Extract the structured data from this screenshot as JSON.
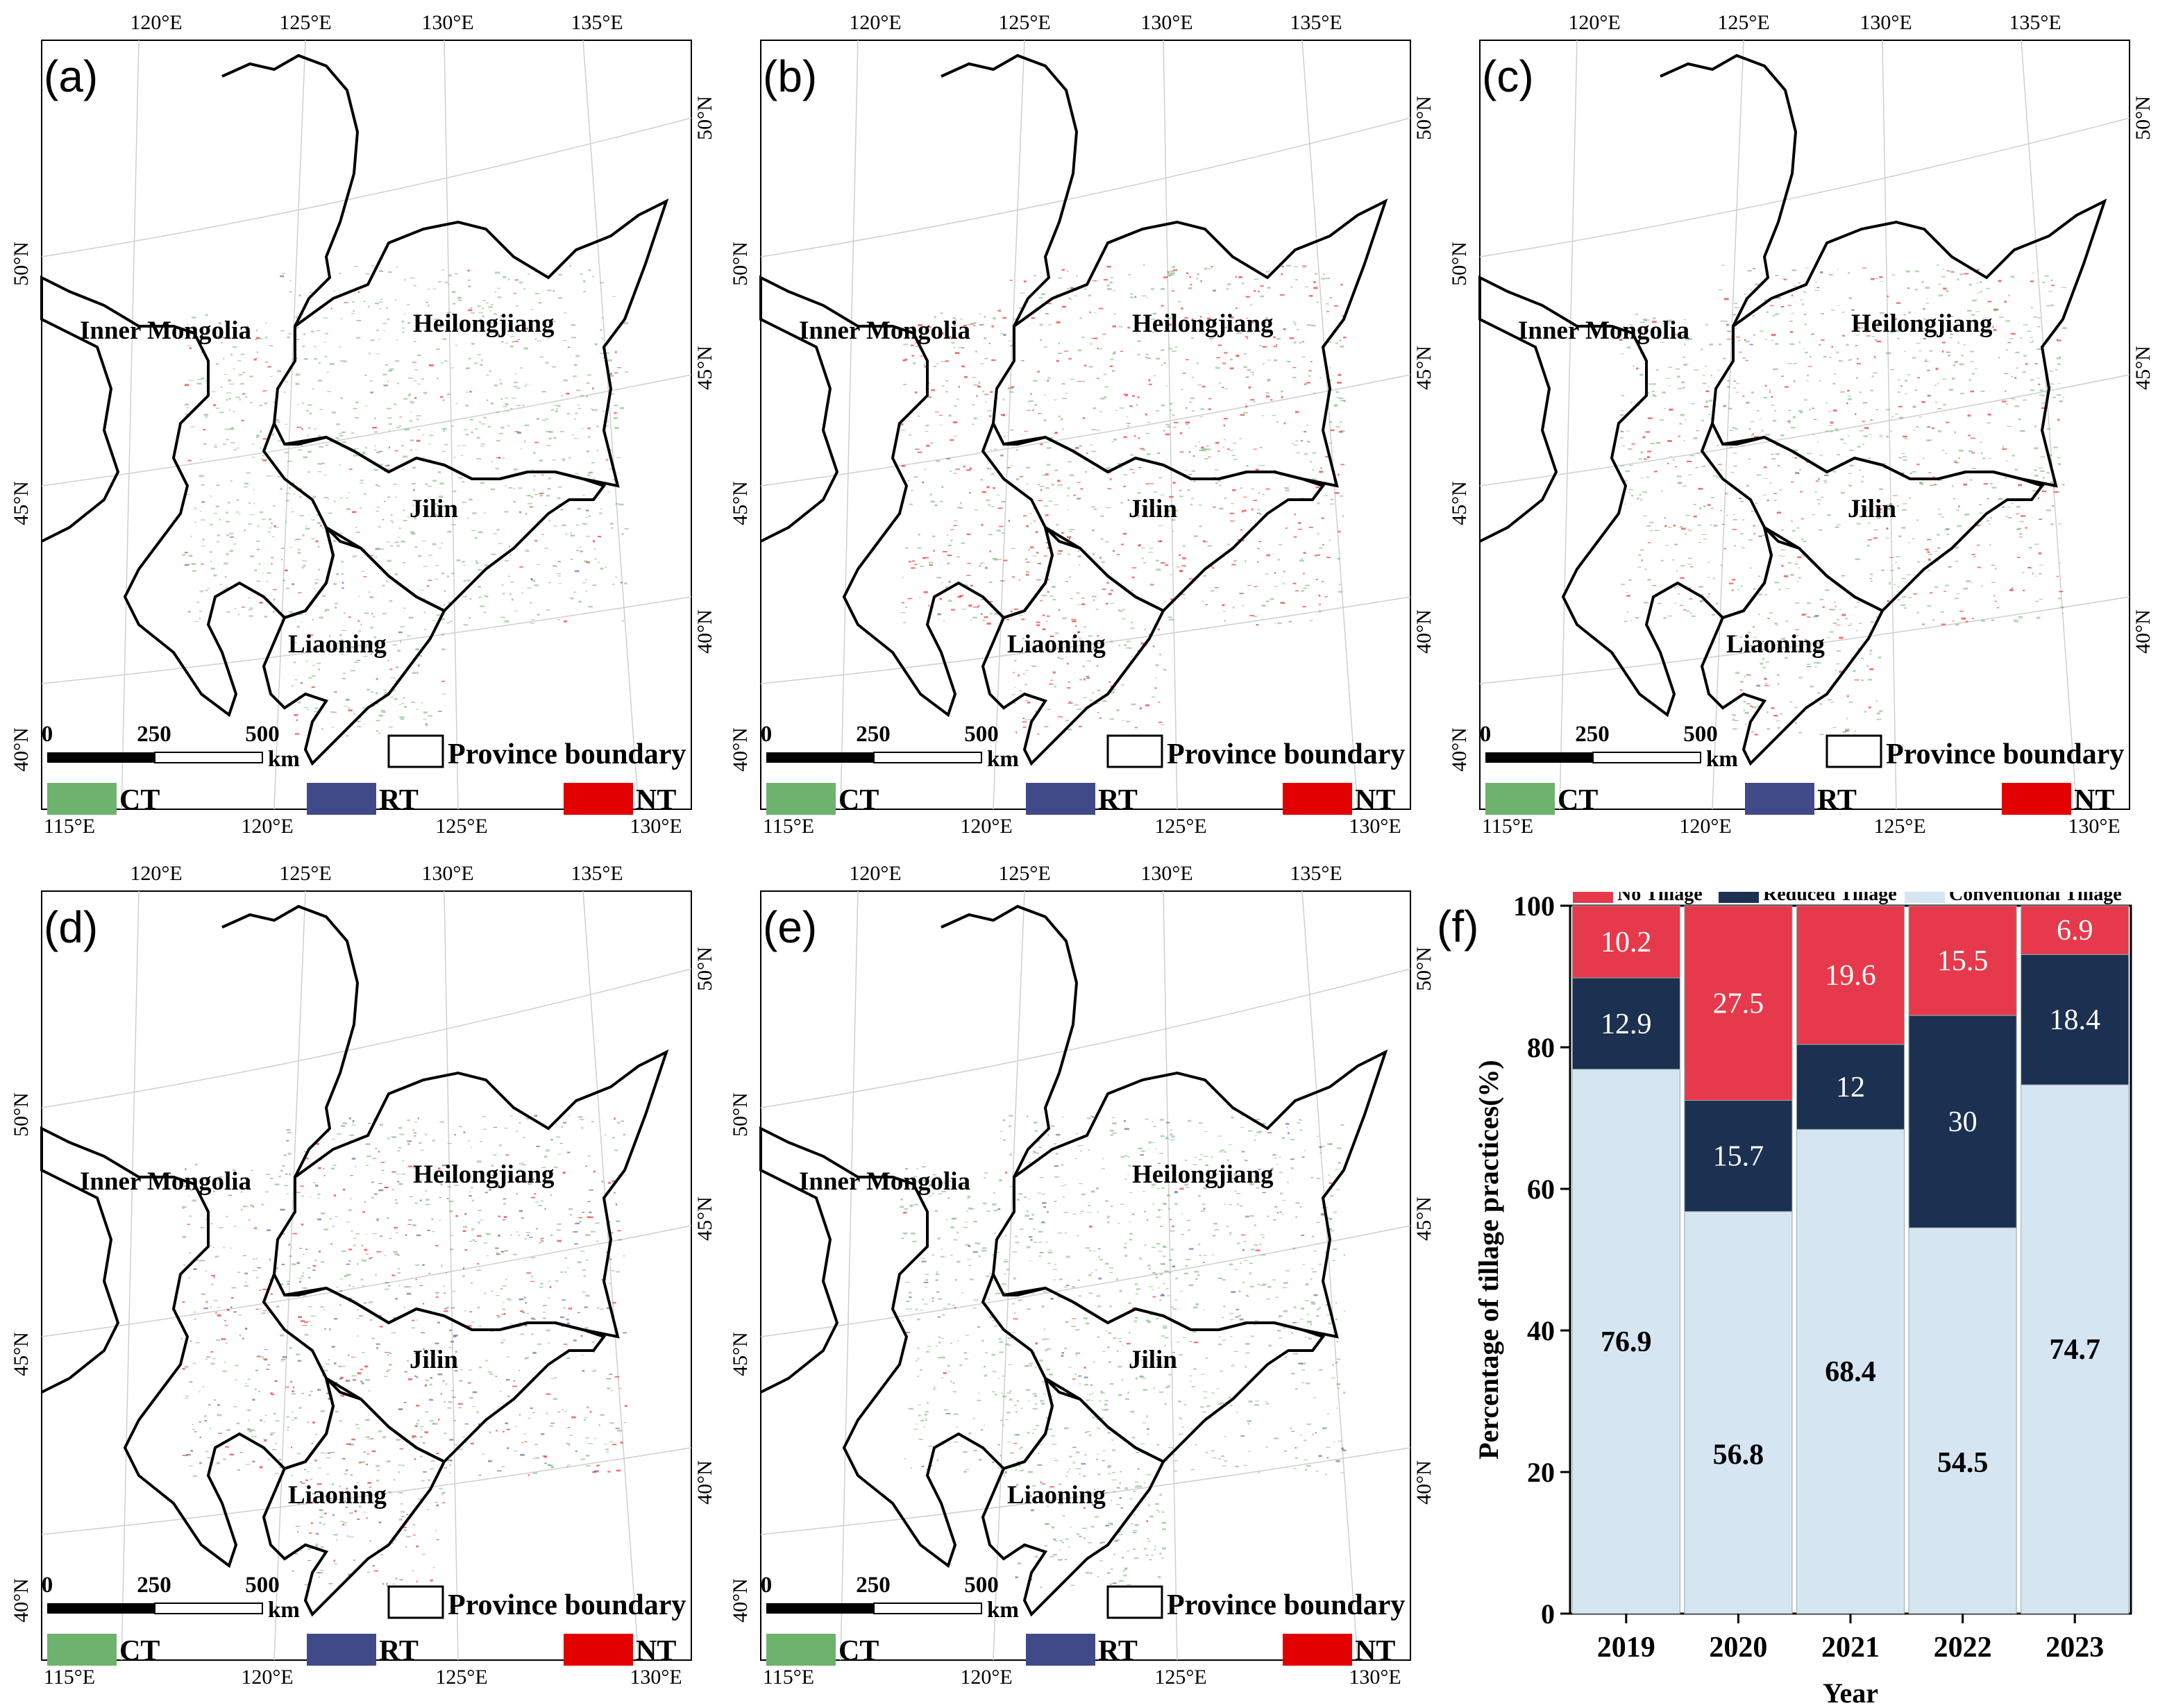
{
  "maps": [
    {
      "label": "(a)"
    },
    {
      "label": "(b)"
    },
    {
      "label": "(c)"
    },
    {
      "label": "(d)"
    },
    {
      "label": "(e)"
    }
  ],
  "top_lon_ticks": [
    "120°E",
    "125°E",
    "130°E",
    "135°E"
  ],
  "bottom_lon_ticks": [
    "115°E",
    "120°E",
    "125°E",
    "130°E"
  ],
  "left_lat_ticks": [
    "40°N",
    "45°N",
    "50°N"
  ],
  "right_lat_ticks": [
    "40°N",
    "45°N",
    "50°N"
  ],
  "provinces": {
    "inner_mongolia": "Inner Mongolia",
    "heilongjiang": "Heilongjiang",
    "jilin": "Jilin",
    "liaoning": "Liaoning"
  },
  "scalebar": {
    "ticks": [
      "0",
      "250",
      "500"
    ],
    "unit": "km"
  },
  "legend": {
    "province_boundary": "Province boundary",
    "ct": "CT",
    "rt": "RT",
    "nt": "NT",
    "ct_color": "#6db26d",
    "rt_color": "#414a88",
    "nt_color": "#e30000"
  },
  "panel_f_label": "(f)",
  "chart_data": {
    "type": "bar",
    "stacked": true,
    "categories": [
      "2019",
      "2020",
      "2021",
      "2022",
      "2023"
    ],
    "series": [
      {
        "name": "Conventional Tillage",
        "color": "#d5e5f1",
        "values": [
          76.9,
          56.8,
          68.4,
          54.5,
          74.7
        ]
      },
      {
        "name": "Reduced Tillage",
        "color": "#1c3151",
        "values": [
          12.9,
          15.7,
          12,
          30,
          18.4
        ]
      },
      {
        "name": "No Tillage",
        "color": "#e63a4c",
        "values": [
          10.2,
          27.5,
          19.6,
          15.5,
          6.9
        ]
      }
    ],
    "legend_order": [
      "No Tillage",
      "Reduced Tillage",
      "Conventional Tillage"
    ],
    "xlabel": "Year",
    "ylabel": "Percentage of tillage practices(%)",
    "ylim": [
      0,
      100
    ],
    "yticks": [
      "0",
      "20",
      "40",
      "60",
      "80",
      "100"
    ]
  }
}
